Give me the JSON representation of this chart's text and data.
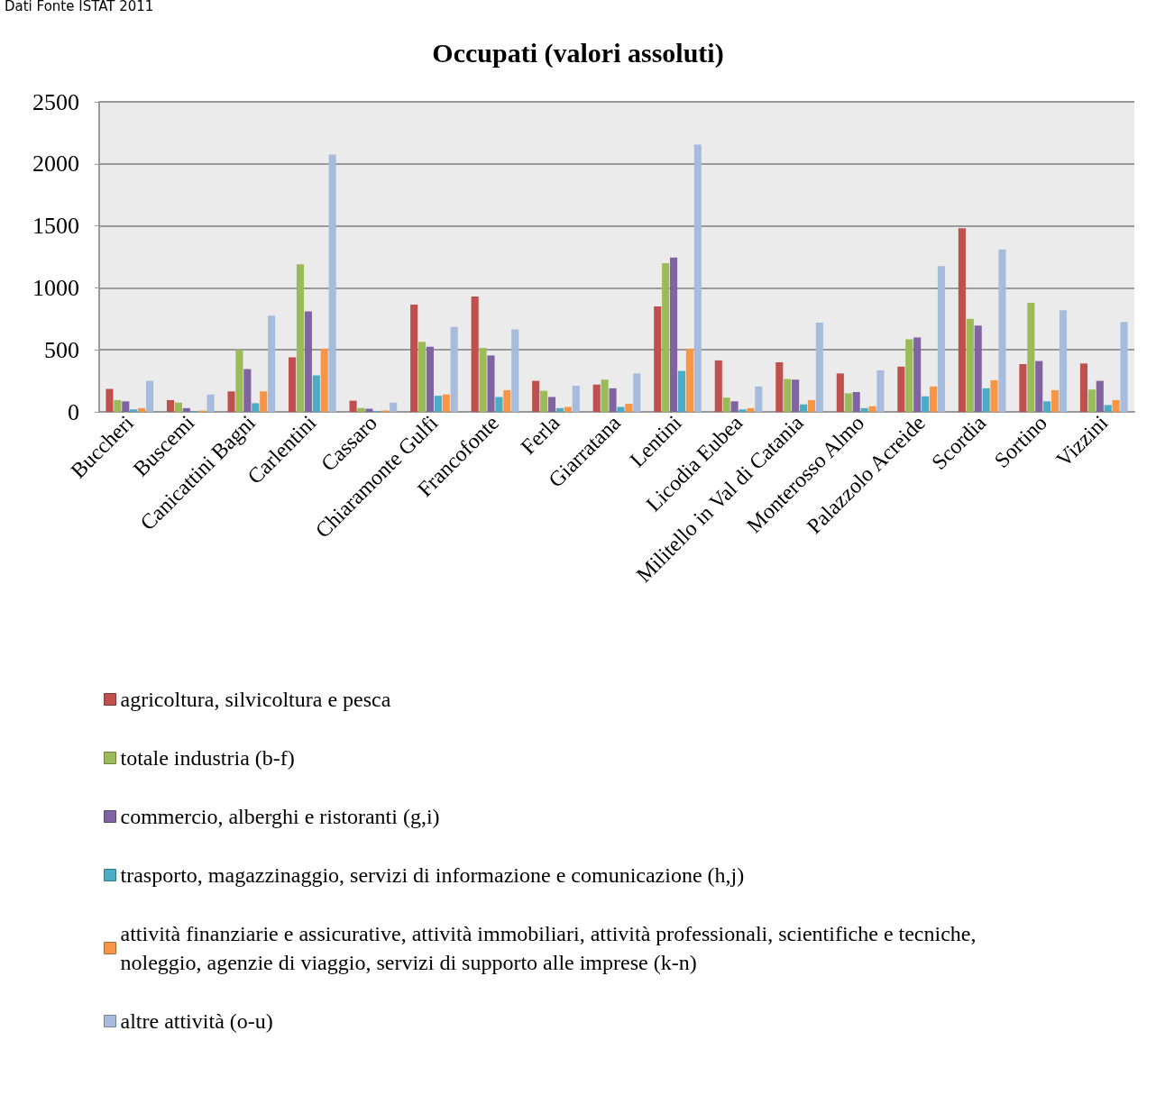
{
  "chart_data": {
    "type": "bar",
    "title": "Occupati (valori assoluti)",
    "annotations": [
      "Dati Fonte ISTAT 2011"
    ],
    "categories": [
      "Buccheri",
      "Buscemi",
      "Canicattini Bagni",
      "Carlentini",
      "Cassaro",
      "Chiaramonte Gulfi",
      "Francofonte",
      "Ferla",
      "Giarratana",
      "Lentini",
      "Licodia Eubea",
      "Militello in Val di Catania",
      "Monterosso Almo",
      "Palazzolo Acreide",
      "Scordia",
      "Sortino",
      "Vizzini"
    ],
    "series": [
      {
        "name": "agricoltura, silvicoltura e pesca",
        "color": "#c0504d",
        "values": [
          185,
          95,
          165,
          440,
          90,
          865,
          930,
          250,
          220,
          850,
          415,
          400,
          310,
          365,
          1480,
          385,
          390
        ]
      },
      {
        "name": "totale industria (b-f)",
        "color": "#9bbb59",
        "values": [
          95,
          75,
          500,
          1190,
          30,
          565,
          515,
          170,
          260,
          1200,
          115,
          265,
          150,
          585,
          750,
          880,
          180
        ]
      },
      {
        "name": "commercio, alberghi e ristoranti (g,i)",
        "color": "#8064a2",
        "values": [
          85,
          30,
          345,
          810,
          25,
          525,
          455,
          120,
          190,
          1245,
          85,
          260,
          160,
          600,
          695,
          410,
          250
        ]
      },
      {
        "name": "trasporto, magazzinaggio, servizi di informazione e comunicazione (h,j)",
        "color": "#4bacc6",
        "values": [
          20,
          5,
          70,
          295,
          5,
          130,
          120,
          30,
          40,
          330,
          20,
          60,
          30,
          125,
          190,
          85,
          55
        ]
      },
      {
        "name": "attività finanziarie e assicurative, attività immobiliari, attività professionali, scientifiche e tecniche, noleggio, agenzie di viaggio, servizi di supporto alle imprese (k-n)",
        "color": "#f79646",
        "values": [
          30,
          10,
          165,
          510,
          10,
          140,
          175,
          40,
          65,
          510,
          30,
          95,
          45,
          205,
          255,
          175,
          95
        ]
      },
      {
        "name": "altre attività (o-u)",
        "color": "#a7bcdd",
        "values": [
          250,
          140,
          775,
          2075,
          75,
          685,
          665,
          210,
          310,
          2155,
          205,
          720,
          335,
          1175,
          1310,
          820,
          725
        ]
      }
    ],
    "ylim": [
      0,
      2500
    ],
    "yticks": [
      0,
      500,
      1000,
      1500,
      2000,
      2500
    ],
    "grid": "y",
    "legend": "bottom"
  }
}
